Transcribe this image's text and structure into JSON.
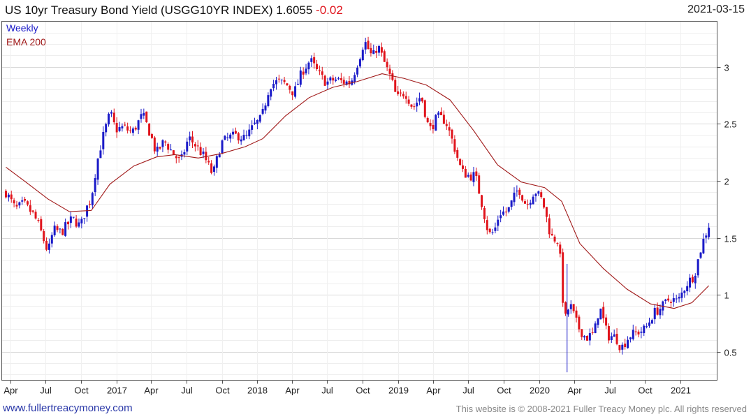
{
  "header": {
    "title_prefix": "US 10yr Treasury Bond Yield (USGG10YR INDEX) 1.6055",
    "change": "-0.02",
    "date": "2021-03-15"
  },
  "footer": {
    "site": "www.fullertreacymoney.com",
    "copyright": "This website is © 2008-2021 Fuller Treacy Money plc. All rights reserved"
  },
  "colors": {
    "up": "#1a1ac8",
    "down": "#e0141c",
    "ema": "#a01818",
    "grid": "#d9d9d9",
    "frame": "#555555"
  },
  "chart_data": {
    "type": "candlestick",
    "title": "US 10yr Treasury Bond Yield (USGG10YR INDEX)",
    "last": 1.6055,
    "change": -0.02,
    "legend": [
      "Weekly",
      "EMA 200"
    ],
    "y_ticks": [
      0.5,
      1,
      1.5,
      2,
      2.5,
      3
    ],
    "ylim": [
      0.25,
      3.4
    ],
    "x_ticks": [
      {
        "label": "Apr",
        "date": "2016-04-01"
      },
      {
        "label": "Jul",
        "date": "2016-07-01"
      },
      {
        "label": "Oct",
        "date": "2016-10-01"
      },
      {
        "label": "2017",
        "date": "2017-01-01"
      },
      {
        "label": "Apr",
        "date": "2017-04-01"
      },
      {
        "label": "Jul",
        "date": "2017-07-01"
      },
      {
        "label": "Oct",
        "date": "2017-10-01"
      },
      {
        "label": "2018",
        "date": "2018-01-01"
      },
      {
        "label": "Apr",
        "date": "2018-04-01"
      },
      {
        "label": "Jul",
        "date": "2018-07-01"
      },
      {
        "label": "Oct",
        "date": "2018-10-01"
      },
      {
        "label": "2019",
        "date": "2019-01-01"
      },
      {
        "label": "Apr",
        "date": "2019-04-01"
      },
      {
        "label": "Jul",
        "date": "2019-07-01"
      },
      {
        "label": "Oct",
        "date": "2019-10-01"
      },
      {
        "label": "2020",
        "date": "2020-01-01"
      },
      {
        "label": "Apr",
        "date": "2020-04-01"
      },
      {
        "label": "Jul",
        "date": "2020-07-01"
      },
      {
        "label": "Oct",
        "date": "2020-10-01"
      },
      {
        "label": "2021",
        "date": "2021-01-01"
      }
    ],
    "xlim": [
      "2016-03-21",
      "2021-03-22"
    ],
    "close_path": [
      [
        "2016-03-21",
        1.9
      ],
      [
        "2016-04-15",
        1.75
      ],
      [
        "2016-05-06",
        1.8
      ],
      [
        "2016-06-01",
        1.7
      ],
      [
        "2016-06-15",
        1.6
      ],
      [
        "2016-07-08",
        1.37
      ],
      [
        "2016-07-22",
        1.57
      ],
      [
        "2016-08-12",
        1.55
      ],
      [
        "2016-09-09",
        1.67
      ],
      [
        "2016-09-30",
        1.6
      ],
      [
        "2016-10-14",
        1.75
      ],
      [
        "2016-10-28",
        1.85
      ],
      [
        "2016-11-11",
        2.15
      ],
      [
        "2016-11-25",
        2.36
      ],
      [
        "2016-12-16",
        2.6
      ],
      [
        "2016-12-30",
        2.45
      ],
      [
        "2017-01-20",
        2.47
      ],
      [
        "2017-02-10",
        2.42
      ],
      [
        "2017-03-10",
        2.58
      ],
      [
        "2017-03-31",
        2.4
      ],
      [
        "2017-04-14",
        2.24
      ],
      [
        "2017-05-05",
        2.35
      ],
      [
        "2017-05-26",
        2.25
      ],
      [
        "2017-06-16",
        2.16
      ],
      [
        "2017-07-07",
        2.38
      ],
      [
        "2017-07-28",
        2.3
      ],
      [
        "2017-08-18",
        2.2
      ],
      [
        "2017-09-08",
        2.05
      ],
      [
        "2017-09-29",
        2.33
      ],
      [
        "2017-10-20",
        2.38
      ],
      [
        "2017-11-10",
        2.4
      ],
      [
        "2017-12-01",
        2.37
      ],
      [
        "2017-12-22",
        2.48
      ],
      [
        "2018-01-12",
        2.55
      ],
      [
        "2018-02-02",
        2.84
      ],
      [
        "2018-02-23",
        2.87
      ],
      [
        "2018-03-16",
        2.85
      ],
      [
        "2018-04-06",
        2.77
      ],
      [
        "2018-04-27",
        2.96
      ],
      [
        "2018-05-18",
        3.06
      ],
      [
        "2018-06-08",
        2.94
      ],
      [
        "2018-06-29",
        2.86
      ],
      [
        "2018-07-20",
        2.89
      ],
      [
        "2018-08-10",
        2.87
      ],
      [
        "2018-08-31",
        2.86
      ],
      [
        "2018-09-21",
        3.07
      ],
      [
        "2018-10-05",
        3.23
      ],
      [
        "2018-10-26",
        3.08
      ],
      [
        "2018-11-09",
        3.19
      ],
      [
        "2018-11-30",
        3.0
      ],
      [
        "2018-12-14",
        2.89
      ],
      [
        "2018-12-28",
        2.72
      ],
      [
        "2019-01-18",
        2.78
      ],
      [
        "2019-02-08",
        2.64
      ],
      [
        "2019-03-01",
        2.75
      ],
      [
        "2019-03-22",
        2.44
      ],
      [
        "2019-04-12",
        2.56
      ],
      [
        "2019-05-03",
        2.53
      ],
      [
        "2019-05-24",
        2.32
      ],
      [
        "2019-06-14",
        2.08
      ],
      [
        "2019-07-05",
        2.04
      ],
      [
        "2019-07-19",
        2.05
      ],
      [
        "2019-08-02",
        1.85
      ],
      [
        "2019-08-23",
        1.53
      ],
      [
        "2019-09-06",
        1.55
      ],
      [
        "2019-09-20",
        1.72
      ],
      [
        "2019-10-11",
        1.73
      ],
      [
        "2019-11-08",
        1.94
      ],
      [
        "2019-11-29",
        1.78
      ],
      [
        "2019-12-20",
        1.92
      ],
      [
        "2020-01-10",
        1.82
      ],
      [
        "2020-01-31",
        1.51
      ],
      [
        "2020-02-21",
        1.47
      ],
      [
        "2020-03-06",
        0.76
      ],
      [
        "2020-03-20",
        0.92
      ],
      [
        "2020-04-10",
        0.72
      ],
      [
        "2020-05-01",
        0.62
      ],
      [
        "2020-05-22",
        0.66
      ],
      [
        "2020-06-05",
        0.9
      ],
      [
        "2020-06-26",
        0.64
      ],
      [
        "2020-07-17",
        0.63
      ],
      [
        "2020-07-31",
        0.53
      ],
      [
        "2020-08-21",
        0.64
      ],
      [
        "2020-09-11",
        0.67
      ],
      [
        "2020-10-02",
        0.7
      ],
      [
        "2020-10-23",
        0.84
      ],
      [
        "2020-11-13",
        0.89
      ],
      [
        "2020-12-04",
        0.97
      ],
      [
        "2020-12-25",
        0.94
      ],
      [
        "2021-01-15",
        1.09
      ],
      [
        "2021-02-05",
        1.17
      ],
      [
        "2021-02-26",
        1.45
      ],
      [
        "2021-03-15",
        1.61
      ]
    ],
    "ema_200": [
      [
        "2016-03-21",
        2.12
      ],
      [
        "2016-05-15",
        1.98
      ],
      [
        "2016-07-08",
        1.84
      ],
      [
        "2016-09-01",
        1.73
      ],
      [
        "2016-10-28",
        1.74
      ],
      [
        "2016-12-15",
        1.97
      ],
      [
        "2017-02-15",
        2.13
      ],
      [
        "2017-04-15",
        2.21
      ],
      [
        "2017-06-01",
        2.23
      ],
      [
        "2017-08-01",
        2.2
      ],
      [
        "2017-10-01",
        2.24
      ],
      [
        "2017-12-01",
        2.3
      ],
      [
        "2018-01-15",
        2.37
      ],
      [
        "2018-03-15",
        2.57
      ],
      [
        "2018-05-15",
        2.73
      ],
      [
        "2018-07-15",
        2.82
      ],
      [
        "2018-09-15",
        2.87
      ],
      [
        "2018-11-20",
        2.94
      ],
      [
        "2019-01-15",
        2.9
      ],
      [
        "2019-03-15",
        2.84
      ],
      [
        "2019-05-15",
        2.71
      ],
      [
        "2019-07-15",
        2.44
      ],
      [
        "2019-09-15",
        2.14
      ],
      [
        "2019-11-15",
        1.99
      ],
      [
        "2020-01-15",
        1.94
      ],
      [
        "2020-02-28",
        1.82
      ],
      [
        "2020-04-15",
        1.45
      ],
      [
        "2020-06-15",
        1.23
      ],
      [
        "2020-08-15",
        1.05
      ],
      [
        "2020-10-15",
        0.92
      ],
      [
        "2020-12-15",
        0.88
      ],
      [
        "2021-01-30",
        0.93
      ],
      [
        "2021-03-15",
        1.08
      ]
    ]
  }
}
